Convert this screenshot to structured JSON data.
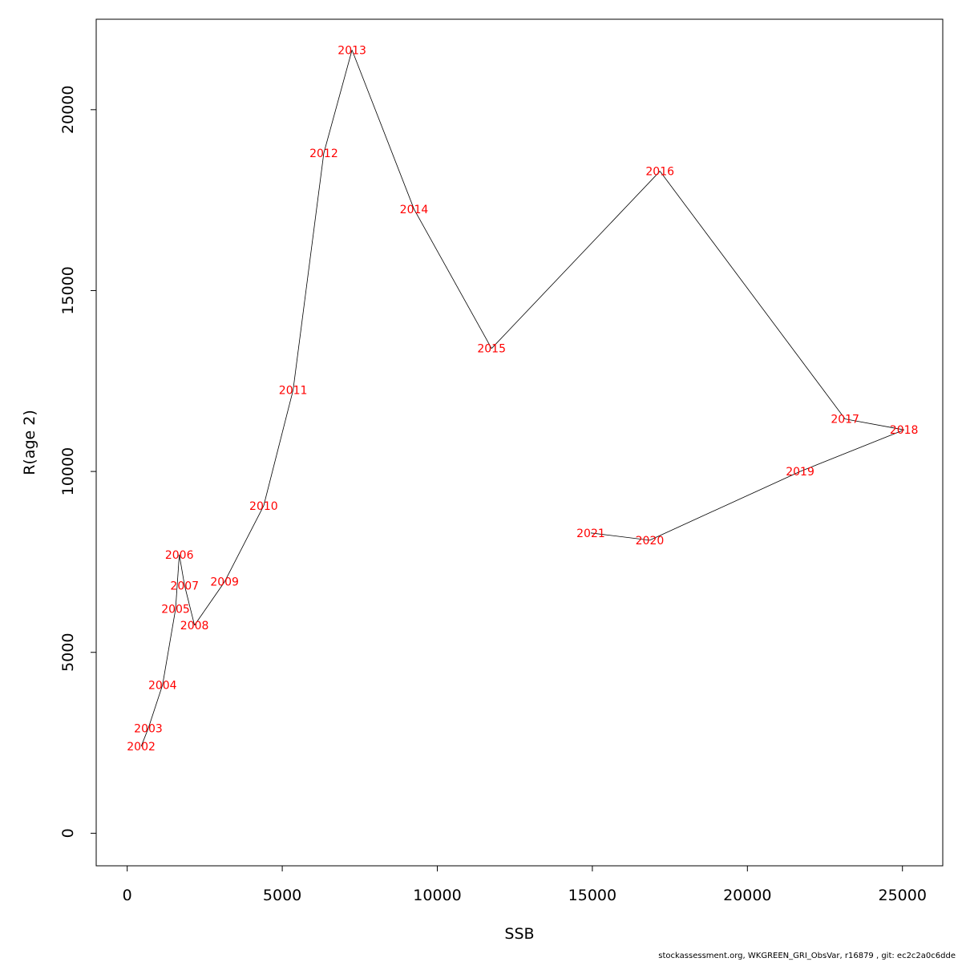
{
  "chart_data": {
    "type": "line",
    "xlabel": "SSB",
    "ylabel": "R(age 2)",
    "xlim": [
      -1000,
      26300
    ],
    "ylim": [
      -900,
      22500
    ],
    "x_ticks": [
      0,
      5000,
      10000,
      15000,
      20000,
      25000
    ],
    "y_ticks": [
      0,
      5000,
      10000,
      15000,
      20000
    ],
    "grid": false,
    "line_color": "#000000",
    "label_color": "#ff0000",
    "points": [
      {
        "label": "2002",
        "x": 450,
        "y": 2400
      },
      {
        "label": "2003",
        "x": 680,
        "y": 2900
      },
      {
        "label": "2004",
        "x": 1140,
        "y": 4100
      },
      {
        "label": "2005",
        "x": 1560,
        "y": 6200
      },
      {
        "label": "2006",
        "x": 1680,
        "y": 7700
      },
      {
        "label": "2007",
        "x": 1850,
        "y": 6850
      },
      {
        "label": "2008",
        "x": 2170,
        "y": 5750
      },
      {
        "label": "2009",
        "x": 3140,
        "y": 6950
      },
      {
        "label": "2010",
        "x": 4400,
        "y": 9050
      },
      {
        "label": "2011",
        "x": 5350,
        "y": 12250
      },
      {
        "label": "2012",
        "x": 6340,
        "y": 18800
      },
      {
        "label": "2013",
        "x": 7250,
        "y": 21650
      },
      {
        "label": "2014",
        "x": 9250,
        "y": 17250
      },
      {
        "label": "2015",
        "x": 11750,
        "y": 13400
      },
      {
        "label": "2016",
        "x": 17180,
        "y": 18300
      },
      {
        "label": "2017",
        "x": 23150,
        "y": 11450
      },
      {
        "label": "2018",
        "x": 25050,
        "y": 11150
      },
      {
        "label": "2019",
        "x": 21700,
        "y": 10000
      },
      {
        "label": "2020",
        "x": 16850,
        "y": 8100
      },
      {
        "label": "2021",
        "x": 14950,
        "y": 8300
      }
    ]
  },
  "footer": {
    "text": "stockassessment.org, WKGREEN_GRI_ObsVar, r16879 , git: ec2c2a0c6dde"
  }
}
